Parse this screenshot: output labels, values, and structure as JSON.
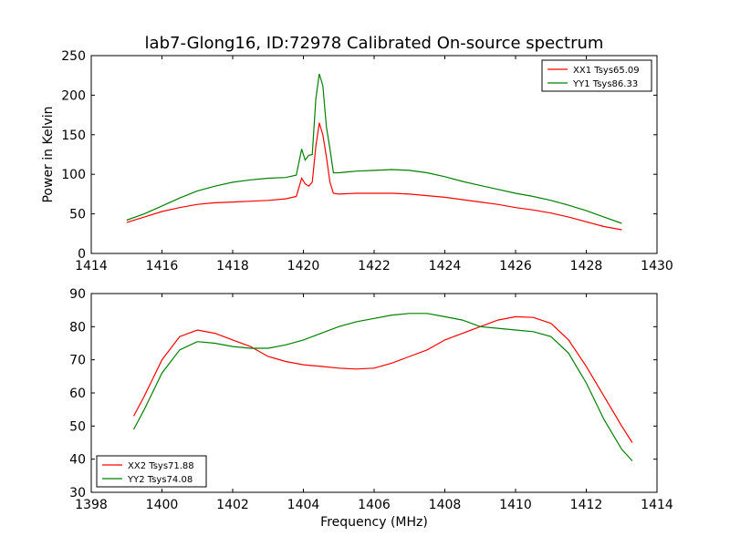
{
  "title": "lab7-Glong16, ID:72978 Calibrated On-source spectrum",
  "colors": {
    "red": "#ff0000",
    "green": "#008000"
  },
  "chart_data": [
    {
      "type": "line",
      "ylabel": "Power in Kelvin",
      "xlabel": "",
      "xlim": [
        1414,
        1430
      ],
      "ylim": [
        0,
        250
      ],
      "xticks": [
        1414,
        1416,
        1418,
        1420,
        1422,
        1424,
        1426,
        1428,
        1430
      ],
      "yticks": [
        0,
        50,
        100,
        150,
        200,
        250
      ],
      "legend_position": "top-right",
      "series": [
        {
          "name": "XX1 Tsys65.09",
          "color": "#ff0000",
          "x": [
            1415,
            1415.5,
            1416,
            1416.5,
            1417,
            1417.5,
            1418,
            1418.5,
            1419,
            1419.5,
            1419.8,
            1419.95,
            1420.05,
            1420.15,
            1420.25,
            1420.35,
            1420.45,
            1420.55,
            1420.65,
            1420.75,
            1420.85,
            1421,
            1421.5,
            1422,
            1422.5,
            1423,
            1423.5,
            1424,
            1424.5,
            1425,
            1425.5,
            1426,
            1426.5,
            1427,
            1427.5,
            1428,
            1428.5,
            1429
          ],
          "y": [
            39,
            46,
            53,
            58,
            62,
            64,
            65,
            66,
            67,
            69,
            72,
            95,
            88,
            85,
            90,
            135,
            165,
            150,
            122,
            90,
            76,
            75,
            76,
            76,
            76,
            75,
            73,
            71,
            68,
            65,
            62,
            58,
            55,
            51,
            46,
            40,
            34,
            30
          ]
        },
        {
          "name": "YY1 Tsys86.33",
          "color": "#008000",
          "x": [
            1415,
            1415.5,
            1416,
            1416.5,
            1417,
            1417.5,
            1418,
            1418.5,
            1419,
            1419.5,
            1419.8,
            1419.95,
            1420.05,
            1420.15,
            1420.25,
            1420.35,
            1420.45,
            1420.55,
            1420.65,
            1420.75,
            1420.85,
            1421,
            1421.5,
            1422,
            1422.5,
            1423,
            1423.5,
            1424,
            1424.5,
            1425,
            1425.5,
            1426,
            1426.5,
            1427,
            1427.5,
            1428,
            1428.5,
            1429
          ],
          "y": [
            42,
            50,
            60,
            70,
            79,
            85,
            90,
            93,
            95,
            96,
            99,
            132,
            118,
            124,
            125,
            195,
            227,
            212,
            160,
            132,
            102,
            102,
            104,
            105,
            106,
            105,
            102,
            97,
            91,
            86,
            81,
            76,
            72,
            67,
            61,
            54,
            46,
            38
          ]
        }
      ]
    },
    {
      "type": "line",
      "ylabel": "",
      "xlabel": "Frequency (MHz)",
      "xlim": [
        1398,
        1414
      ],
      "ylim": [
        30,
        90
      ],
      "xticks": [
        1398,
        1400,
        1402,
        1404,
        1406,
        1408,
        1410,
        1412,
        1414
      ],
      "yticks": [
        30,
        40,
        50,
        60,
        70,
        80,
        90
      ],
      "legend_position": "bottom-left",
      "series": [
        {
          "name": "XX2 Tsys71.88",
          "color": "#ff0000",
          "x": [
            1399.2,
            1399.5,
            1400,
            1400.5,
            1401,
            1401.5,
            1402,
            1402.5,
            1403,
            1403.5,
            1404,
            1404.5,
            1405,
            1405.5,
            1406,
            1406.5,
            1407,
            1407.5,
            1408,
            1408.5,
            1409,
            1409.5,
            1410,
            1410.5,
            1411,
            1411.5,
            1412,
            1412.5,
            1413,
            1413.3
          ],
          "y": [
            53,
            59,
            70,
            77,
            79,
            78,
            76,
            74,
            71,
            69.5,
            68.5,
            68,
            67.5,
            67.2,
            67.5,
            69,
            71,
            73,
            76,
            78,
            80,
            82,
            83,
            82.8,
            81,
            76,
            68,
            59,
            50,
            45
          ]
        },
        {
          "name": "YY2 Tsys74.08",
          "color": "#008000",
          "x": [
            1399.2,
            1399.5,
            1400,
            1400.5,
            1401,
            1401.5,
            1402,
            1402.5,
            1403,
            1403.5,
            1404,
            1404.5,
            1405,
            1405.5,
            1406,
            1406.5,
            1407,
            1407.5,
            1408,
            1408.5,
            1409,
            1409.5,
            1410,
            1410.5,
            1411,
            1411.5,
            1412,
            1412.5,
            1413,
            1413.3
          ],
          "y": [
            49,
            55,
            66,
            73,
            75.5,
            75,
            74,
            73.5,
            73.5,
            74.5,
            76,
            78,
            80,
            81.5,
            82.5,
            83.5,
            84,
            84,
            83,
            82,
            80,
            79.5,
            79,
            78.5,
            77,
            72,
            63,
            52,
            43,
            39.5
          ]
        }
      ]
    }
  ]
}
